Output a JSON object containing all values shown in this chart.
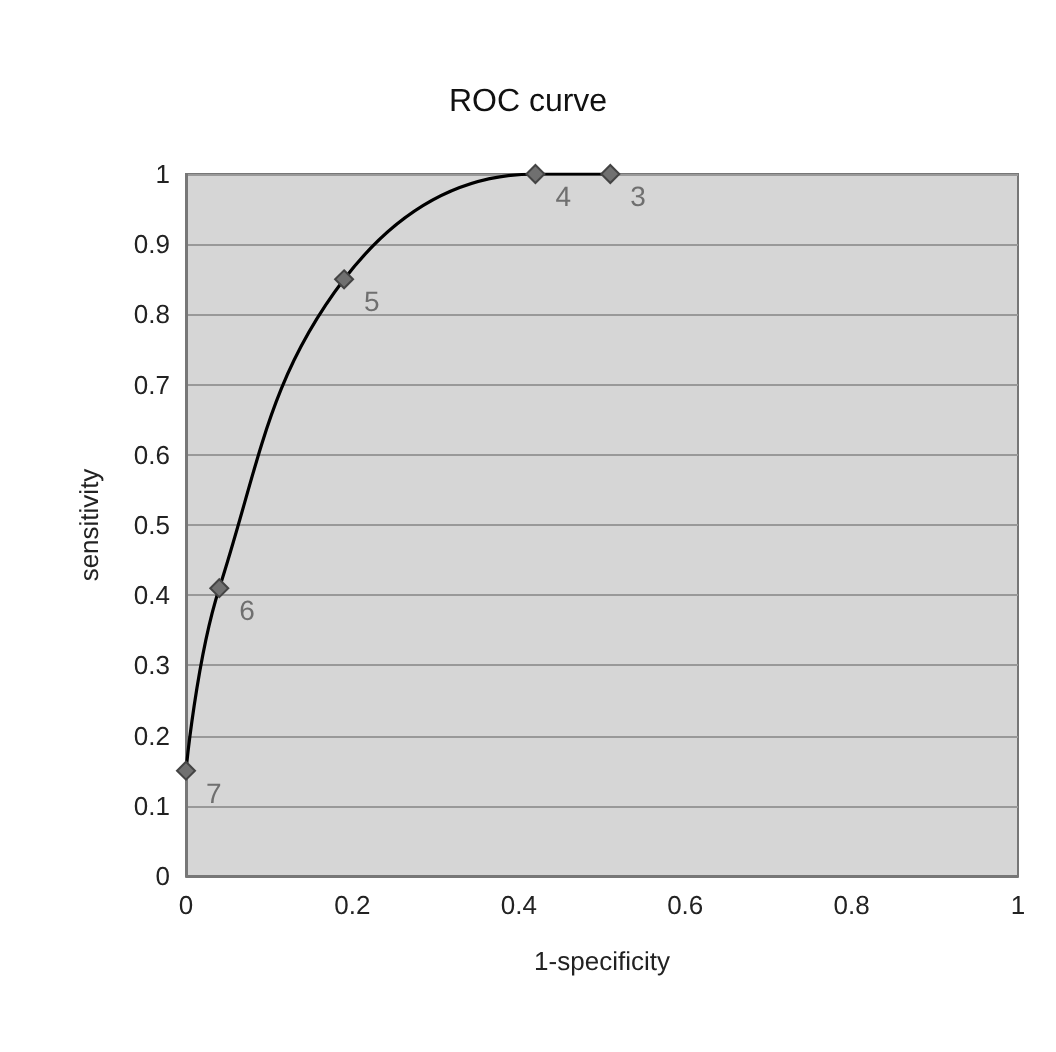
{
  "chart_data": {
    "type": "line",
    "title": "ROC curve",
    "xlabel": "1-specificity",
    "ylabel": "sensitivity",
    "x": [
      0,
      0.04,
      0.19,
      0.42,
      0.51
    ],
    "series": [
      {
        "color": "#000000",
        "values": [
          0.15,
          0.41,
          0.85,
          1,
          1
        ]
      }
    ],
    "xlim": [
      0,
      1
    ],
    "xticks": [
      0,
      0.2,
      0.4,
      0.6,
      0.8,
      1
    ],
    "ylim": [
      0,
      1
    ],
    "yticks": [
      0,
      0.1,
      0.2,
      0.3,
      0.4,
      0.5,
      0.6,
      0.7,
      0.8,
      0.9,
      1
    ],
    "grid": "y",
    "marker": "diamond",
    "line_style": "solid",
    "annotations": [
      {
        "text": "7",
        "x": 0,
        "y": 0.15
      },
      {
        "text": "6",
        "x": 0.04,
        "y": 0.41
      },
      {
        "text": "5",
        "x": 0.19,
        "y": 0.85
      },
      {
        "text": "4",
        "x": 0.42,
        "y": 1
      },
      {
        "text": "3",
        "x": 0.51,
        "y": 1
      }
    ]
  }
}
